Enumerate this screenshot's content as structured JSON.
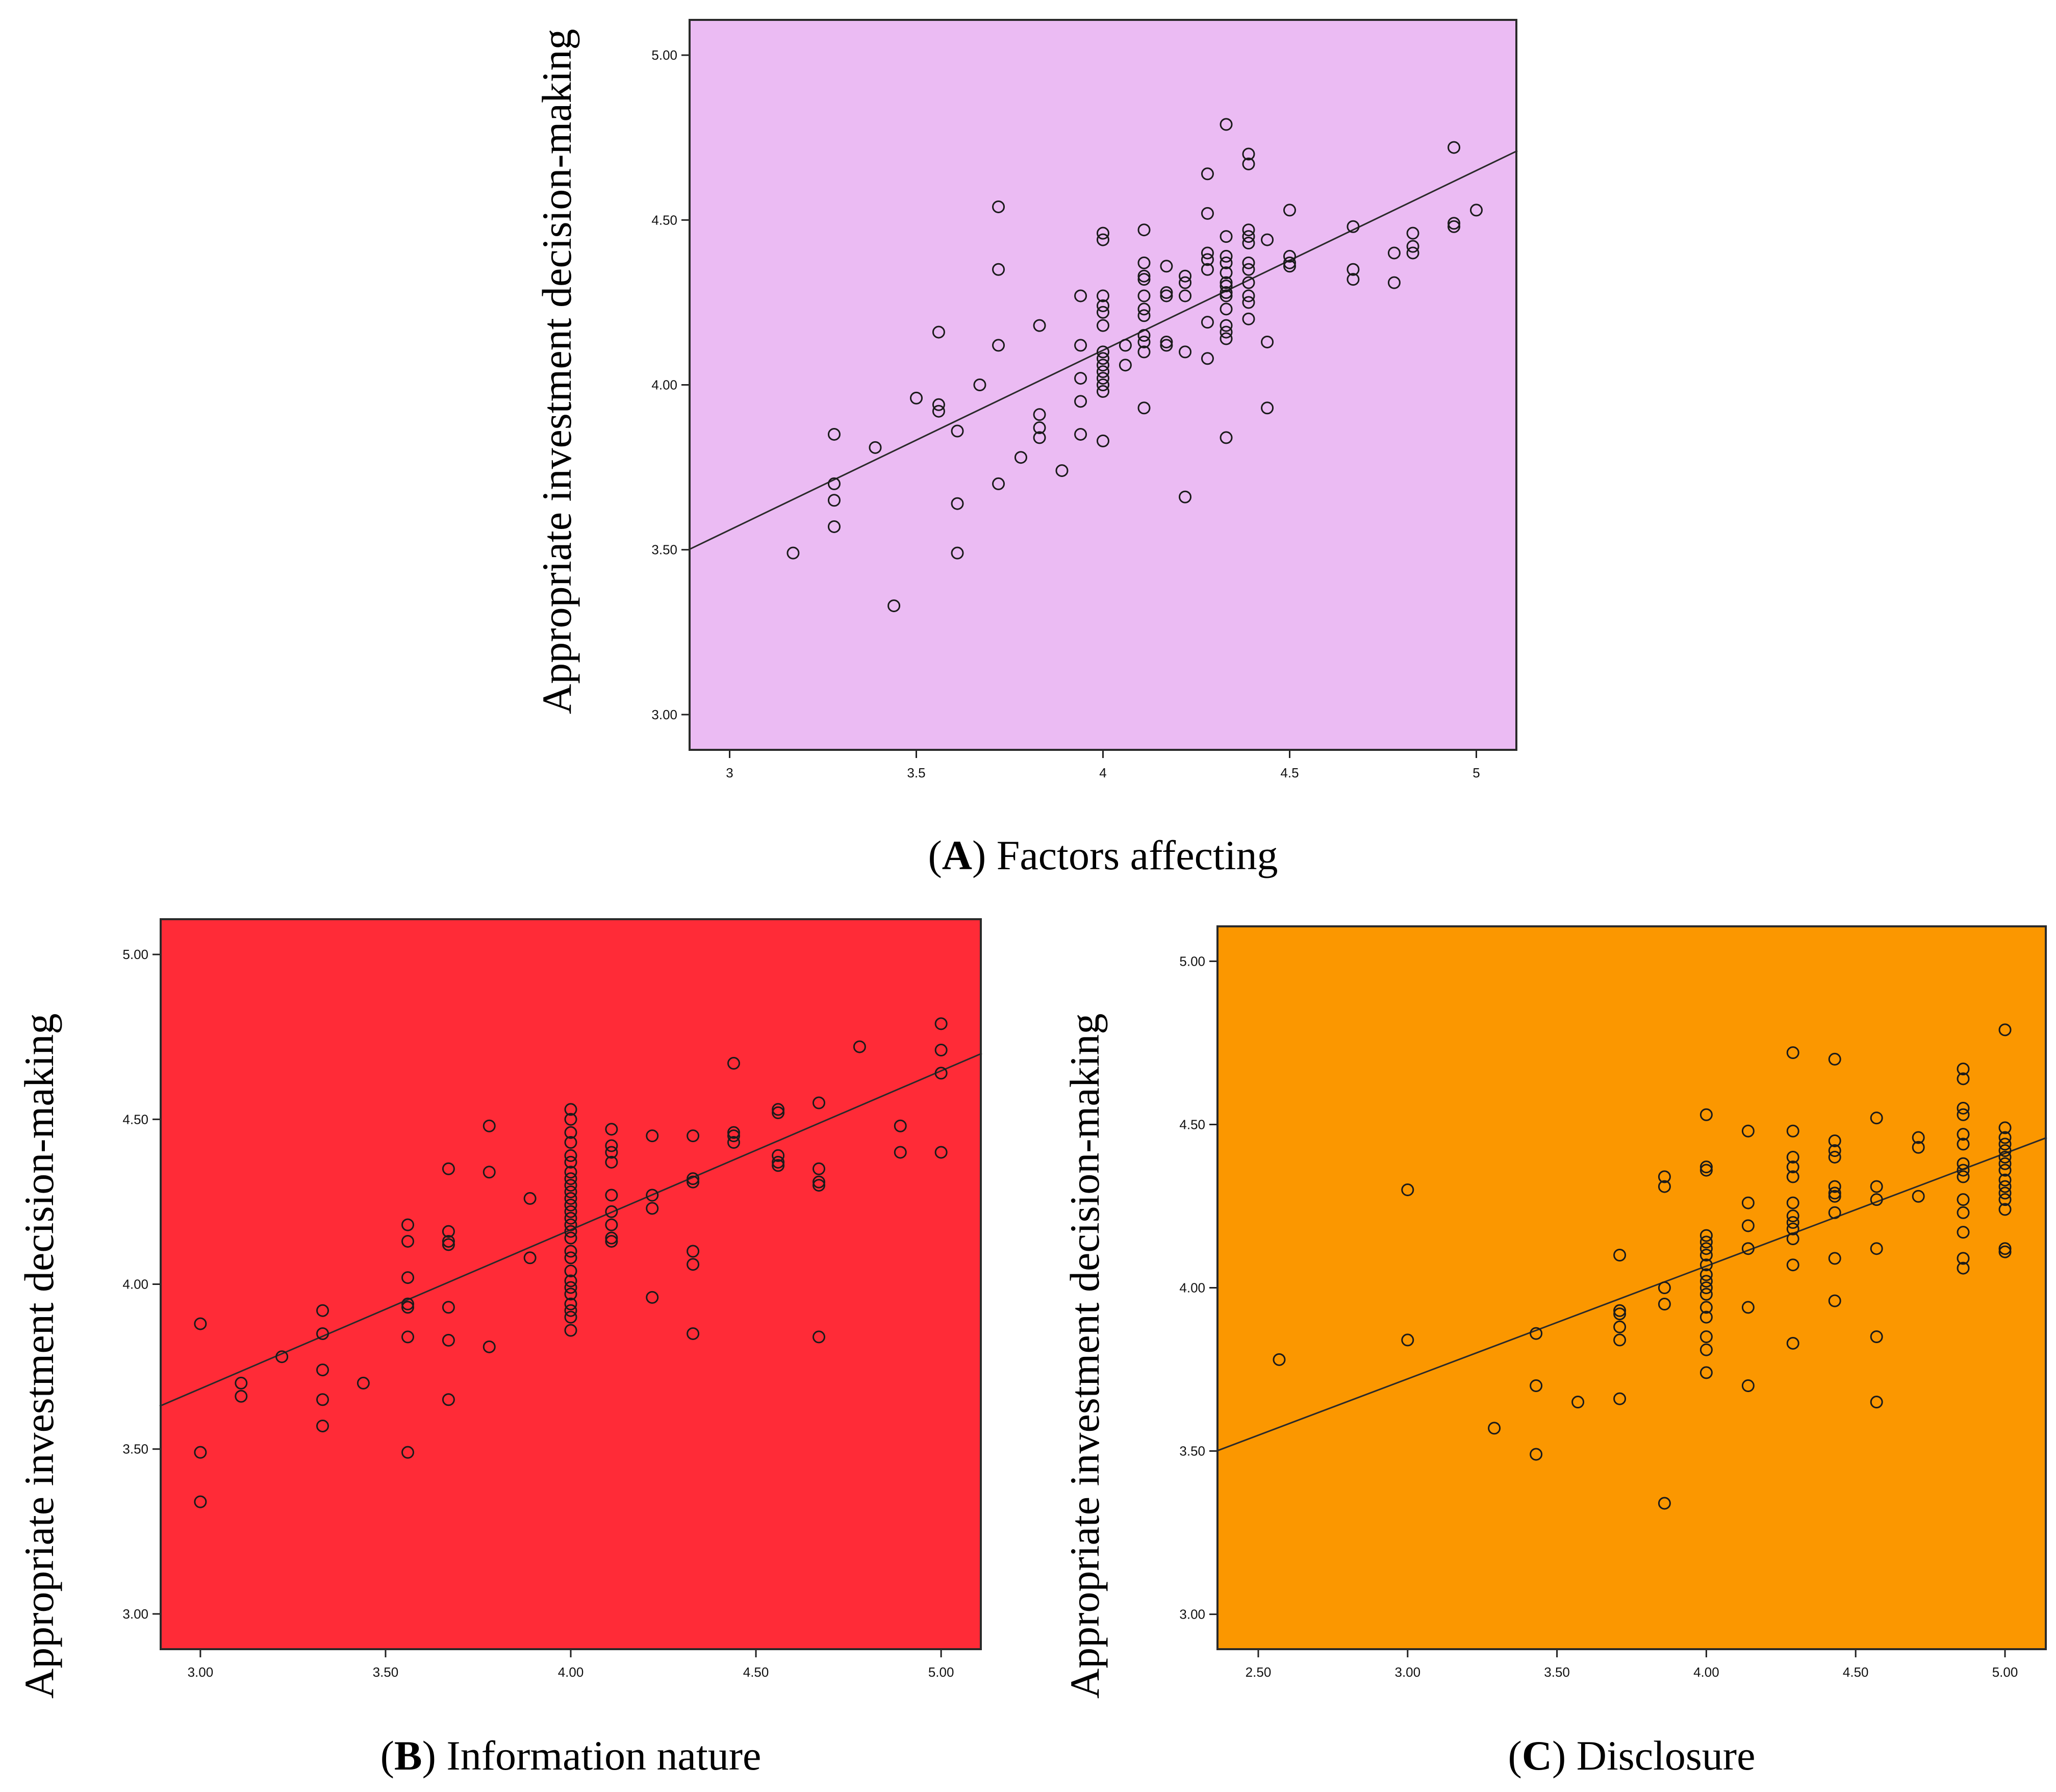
{
  "chart_data": [
    {
      "id": "A",
      "type": "scatter",
      "caption_letter": "A",
      "caption_text": ") Factors affecting",
      "caption_open": "(",
      "ylabel": "Appropriate investment decision-making",
      "xlabel": "",
      "background": "#ebbbf3",
      "xlim": [
        2.89,
        5.11
      ],
      "ylim": [
        2.89,
        5.11
      ],
      "x_ticks": [
        3,
        3.5,
        4,
        4.5,
        5
      ],
      "x_tick_labels": [
        "3",
        "3.5",
        "4",
        "4.5",
        "5"
      ],
      "y_ticks": [
        3.0,
        3.5,
        4.0,
        4.5,
        5.0
      ],
      "y_tick_labels": [
        "3.00",
        "3.50",
        "4.00",
        "4.50",
        "5.00"
      ],
      "fit_line": {
        "x1": 2.89,
        "y1": 3.5,
        "x2": 5.11,
        "y2": 4.71
      },
      "points": [
        [
          3.17,
          3.49
        ],
        [
          3.28,
          3.85
        ],
        [
          3.28,
          3.7
        ],
        [
          3.28,
          3.65
        ],
        [
          3.28,
          3.57
        ],
        [
          3.39,
          3.81
        ],
        [
          3.44,
          3.33
        ],
        [
          3.5,
          3.96
        ],
        [
          3.56,
          4.16
        ],
        [
          3.56,
          3.94
        ],
        [
          3.56,
          3.92
        ],
        [
          3.61,
          3.86
        ],
        [
          3.61,
          3.64
        ],
        [
          3.61,
          3.49
        ],
        [
          3.67,
          4.0
        ],
        [
          3.72,
          4.54
        ],
        [
          3.72,
          4.35
        ],
        [
          3.72,
          4.12
        ],
        [
          3.72,
          3.7
        ],
        [
          3.78,
          3.78
        ],
        [
          3.83,
          4.18
        ],
        [
          3.83,
          3.91
        ],
        [
          3.83,
          3.87
        ],
        [
          3.83,
          3.84
        ],
        [
          3.89,
          3.74
        ],
        [
          3.94,
          4.27
        ],
        [
          3.94,
          4.12
        ],
        [
          3.94,
          4.02
        ],
        [
          3.94,
          3.95
        ],
        [
          3.94,
          3.85
        ],
        [
          4.0,
          4.46
        ],
        [
          4.0,
          4.44
        ],
        [
          4.0,
          4.27
        ],
        [
          4.0,
          4.24
        ],
        [
          4.0,
          4.22
        ],
        [
          4.0,
          4.18
        ],
        [
          4.0,
          4.1
        ],
        [
          4.0,
          4.08
        ],
        [
          4.0,
          4.06
        ],
        [
          4.0,
          4.04
        ],
        [
          4.0,
          4.02
        ],
        [
          4.0,
          4.0
        ],
        [
          4.0,
          3.98
        ],
        [
          4.0,
          3.83
        ],
        [
          4.06,
          4.12
        ],
        [
          4.06,
          4.06
        ],
        [
          4.11,
          4.47
        ],
        [
          4.11,
          4.37
        ],
        [
          4.11,
          4.33
        ],
        [
          4.11,
          4.32
        ],
        [
          4.11,
          4.27
        ],
        [
          4.11,
          4.23
        ],
        [
          4.11,
          4.21
        ],
        [
          4.11,
          4.15
        ],
        [
          4.11,
          4.13
        ],
        [
          4.11,
          4.1
        ],
        [
          4.11,
          3.93
        ],
        [
          4.17,
          4.36
        ],
        [
          4.17,
          4.28
        ],
        [
          4.17,
          4.27
        ],
        [
          4.17,
          4.13
        ],
        [
          4.17,
          4.12
        ],
        [
          4.22,
          4.33
        ],
        [
          4.22,
          4.31
        ],
        [
          4.22,
          4.27
        ],
        [
          4.22,
          4.1
        ],
        [
          4.22,
          3.66
        ],
        [
          4.28,
          4.64
        ],
        [
          4.28,
          4.52
        ],
        [
          4.28,
          4.4
        ],
        [
          4.28,
          4.38
        ],
        [
          4.28,
          4.35
        ],
        [
          4.28,
          4.19
        ],
        [
          4.28,
          4.08
        ],
        [
          4.33,
          4.79
        ],
        [
          4.33,
          4.45
        ],
        [
          4.33,
          4.39
        ],
        [
          4.33,
          4.37
        ],
        [
          4.33,
          4.34
        ],
        [
          4.33,
          4.31
        ],
        [
          4.33,
          4.3
        ],
        [
          4.33,
          4.28
        ],
        [
          4.33,
          4.27
        ],
        [
          4.33,
          4.23
        ],
        [
          4.33,
          4.18
        ],
        [
          4.33,
          4.16
        ],
        [
          4.33,
          4.14
        ],
        [
          4.33,
          3.84
        ],
        [
          4.39,
          4.7
        ],
        [
          4.39,
          4.67
        ],
        [
          4.39,
          4.47
        ],
        [
          4.39,
          4.45
        ],
        [
          4.39,
          4.43
        ],
        [
          4.39,
          4.37
        ],
        [
          4.39,
          4.35
        ],
        [
          4.39,
          4.31
        ],
        [
          4.39,
          4.27
        ],
        [
          4.39,
          4.25
        ],
        [
          4.39,
          4.2
        ],
        [
          4.44,
          4.44
        ],
        [
          4.44,
          4.13
        ],
        [
          4.44,
          3.93
        ],
        [
          4.5,
          4.53
        ],
        [
          4.5,
          4.39
        ],
        [
          4.5,
          4.37
        ],
        [
          4.5,
          4.36
        ],
        [
          4.67,
          4.48
        ],
        [
          4.67,
          4.35
        ],
        [
          4.67,
          4.32
        ],
        [
          4.78,
          4.4
        ],
        [
          4.78,
          4.31
        ],
        [
          4.83,
          4.46
        ],
        [
          4.83,
          4.42
        ],
        [
          4.83,
          4.4
        ],
        [
          4.94,
          4.72
        ],
        [
          4.94,
          4.49
        ],
        [
          4.94,
          4.48
        ],
        [
          5.0,
          4.53
        ]
      ]
    },
    {
      "id": "B",
      "type": "scatter",
      "caption_letter": "B",
      "caption_text": ") Information nature",
      "caption_open": "(",
      "ylabel": "Appropriate investment decision-making",
      "xlabel": "",
      "background": "#ff2b37",
      "xlim": [
        2.89,
        5.11
      ],
      "ylim": [
        2.89,
        5.11
      ],
      "x_ticks": [
        3.0,
        3.5,
        4.0,
        4.5,
        5.0
      ],
      "x_tick_labels": [
        "3.00",
        "3.50",
        "4.00",
        "4.50",
        "5.00"
      ],
      "y_ticks": [
        3.0,
        3.5,
        4.0,
        4.5,
        5.0
      ],
      "y_tick_labels": [
        "3.00",
        "3.50",
        "4.00",
        "4.50",
        "5.00"
      ],
      "fit_line": {
        "x1": 2.89,
        "y1": 3.63,
        "x2": 5.11,
        "y2": 4.7
      },
      "points": [
        [
          3.0,
          3.88
        ],
        [
          3.0,
          3.49
        ],
        [
          3.0,
          3.34
        ],
        [
          3.11,
          3.7
        ],
        [
          3.11,
          3.66
        ],
        [
          3.22,
          3.78
        ],
        [
          3.33,
          3.92
        ],
        [
          3.33,
          3.85
        ],
        [
          3.33,
          3.74
        ],
        [
          3.33,
          3.65
        ],
        [
          3.33,
          3.57
        ],
        [
          3.44,
          3.7
        ],
        [
          3.56,
          4.18
        ],
        [
          3.56,
          4.13
        ],
        [
          3.56,
          4.02
        ],
        [
          3.56,
          3.94
        ],
        [
          3.56,
          3.93
        ],
        [
          3.56,
          3.84
        ],
        [
          3.56,
          3.49
        ],
        [
          3.67,
          4.35
        ],
        [
          3.67,
          4.16
        ],
        [
          3.67,
          4.13
        ],
        [
          3.67,
          4.12
        ],
        [
          3.67,
          3.93
        ],
        [
          3.67,
          3.83
        ],
        [
          3.67,
          3.65
        ],
        [
          3.78,
          4.48
        ],
        [
          3.78,
          4.34
        ],
        [
          3.78,
          3.81
        ],
        [
          3.89,
          4.26
        ],
        [
          3.89,
          4.08
        ],
        [
          4.0,
          4.53
        ],
        [
          4.0,
          4.5
        ],
        [
          4.0,
          4.46
        ],
        [
          4.0,
          4.43
        ],
        [
          4.0,
          4.39
        ],
        [
          4.0,
          4.37
        ],
        [
          4.0,
          4.34
        ],
        [
          4.0,
          4.32
        ],
        [
          4.0,
          4.3
        ],
        [
          4.0,
          4.28
        ],
        [
          4.0,
          4.26
        ],
        [
          4.0,
          4.24
        ],
        [
          4.0,
          4.22
        ],
        [
          4.0,
          4.2
        ],
        [
          4.0,
          4.18
        ],
        [
          4.0,
          4.16
        ],
        [
          4.0,
          4.14
        ],
        [
          4.0,
          4.1
        ],
        [
          4.0,
          4.08
        ],
        [
          4.0,
          4.04
        ],
        [
          4.0,
          4.01
        ],
        [
          4.0,
          3.99
        ],
        [
          4.0,
          3.97
        ],
        [
          4.0,
          3.94
        ],
        [
          4.0,
          3.92
        ],
        [
          4.0,
          3.9
        ],
        [
          4.0,
          3.86
        ],
        [
          4.11,
          4.47
        ],
        [
          4.11,
          4.42
        ],
        [
          4.11,
          4.4
        ],
        [
          4.11,
          4.37
        ],
        [
          4.11,
          4.27
        ],
        [
          4.11,
          4.22
        ],
        [
          4.11,
          4.18
        ],
        [
          4.11,
          4.14
        ],
        [
          4.11,
          4.13
        ],
        [
          4.22,
          4.45
        ],
        [
          4.22,
          4.27
        ],
        [
          4.22,
          4.23
        ],
        [
          4.22,
          3.96
        ],
        [
          4.33,
          4.45
        ],
        [
          4.33,
          4.32
        ],
        [
          4.33,
          4.31
        ],
        [
          4.33,
          4.1
        ],
        [
          4.33,
          4.06
        ],
        [
          4.33,
          3.85
        ],
        [
          4.44,
          4.67
        ],
        [
          4.44,
          4.46
        ],
        [
          4.44,
          4.45
        ],
        [
          4.44,
          4.43
        ],
        [
          4.56,
          4.53
        ],
        [
          4.56,
          4.52
        ],
        [
          4.56,
          4.39
        ],
        [
          4.56,
          4.37
        ],
        [
          4.56,
          4.36
        ],
        [
          4.67,
          4.55
        ],
        [
          4.67,
          4.35
        ],
        [
          4.67,
          4.31
        ],
        [
          4.67,
          4.3
        ],
        [
          4.67,
          3.84
        ],
        [
          4.78,
          4.72
        ],
        [
          4.89,
          4.48
        ],
        [
          4.89,
          4.4
        ],
        [
          5.0,
          4.79
        ],
        [
          5.0,
          4.71
        ],
        [
          5.0,
          4.64
        ],
        [
          5.0,
          4.4
        ]
      ]
    },
    {
      "id": "C",
      "type": "scatter",
      "caption_letter": "C",
      "caption_text": ") Disclosure",
      "caption_open": "(",
      "ylabel": "Appropriate investment decision-making",
      "xlabel": "",
      "background": "#fb9700",
      "xlim": [
        2.36,
        5.14
      ],
      "ylim": [
        2.89,
        5.11
      ],
      "x_ticks": [
        2.5,
        3.0,
        3.5,
        4.0,
        4.5,
        5.0
      ],
      "x_tick_labels": [
        "2.50",
        "3.00",
        "3.50",
        "4.00",
        "4.50",
        "5.00"
      ],
      "y_ticks": [
        3.0,
        3.5,
        4.0,
        4.5,
        5.0
      ],
      "y_tick_labels": [
        "3.00",
        "3.50",
        "4.00",
        "4.50",
        "5.00"
      ],
      "fit_line": {
        "x1": 2.36,
        "y1": 3.5,
        "x2": 5.14,
        "y2": 4.46
      },
      "points": [
        [
          2.57,
          3.78
        ],
        [
          3.0,
          4.3
        ],
        [
          3.0,
          3.84
        ],
        [
          3.29,
          3.57
        ],
        [
          3.43,
          3.86
        ],
        [
          3.43,
          3.7
        ],
        [
          3.43,
          3.49
        ],
        [
          3.57,
          3.65
        ],
        [
          3.71,
          4.1
        ],
        [
          3.71,
          3.93
        ],
        [
          3.71,
          3.92
        ],
        [
          3.71,
          3.88
        ],
        [
          3.71,
          3.84
        ],
        [
          3.71,
          3.66
        ],
        [
          3.86,
          4.34
        ],
        [
          3.86,
          4.31
        ],
        [
          3.86,
          4.0
        ],
        [
          3.86,
          3.95
        ],
        [
          3.86,
          3.34
        ],
        [
          4.0,
          4.53
        ],
        [
          4.0,
          4.37
        ],
        [
          4.0,
          4.36
        ],
        [
          4.0,
          4.16
        ],
        [
          4.0,
          4.14
        ],
        [
          4.0,
          4.12
        ],
        [
          4.0,
          4.1
        ],
        [
          4.0,
          4.07
        ],
        [
          4.0,
          4.04
        ],
        [
          4.0,
          4.02
        ],
        [
          4.0,
          4.0
        ],
        [
          4.0,
          3.98
        ],
        [
          4.0,
          3.94
        ],
        [
          4.0,
          3.91
        ],
        [
          4.0,
          3.85
        ],
        [
          4.0,
          3.81
        ],
        [
          4.0,
          3.74
        ],
        [
          4.14,
          4.48
        ],
        [
          4.14,
          4.26
        ],
        [
          4.14,
          4.19
        ],
        [
          4.14,
          4.12
        ],
        [
          4.14,
          3.94
        ],
        [
          4.14,
          3.7
        ],
        [
          4.29,
          4.72
        ],
        [
          4.29,
          4.48
        ],
        [
          4.29,
          4.4
        ],
        [
          4.29,
          4.37
        ],
        [
          4.29,
          4.34
        ],
        [
          4.29,
          4.26
        ],
        [
          4.29,
          4.22
        ],
        [
          4.29,
          4.2
        ],
        [
          4.29,
          4.18
        ],
        [
          4.29,
          4.15
        ],
        [
          4.29,
          4.07
        ],
        [
          4.29,
          3.83
        ],
        [
          4.43,
          4.7
        ],
        [
          4.43,
          4.45
        ],
        [
          4.43,
          4.42
        ],
        [
          4.43,
          4.4
        ],
        [
          4.43,
          4.31
        ],
        [
          4.43,
          4.29
        ],
        [
          4.43,
          4.28
        ],
        [
          4.43,
          4.23
        ],
        [
          4.43,
          4.09
        ],
        [
          4.43,
          3.96
        ],
        [
          4.57,
          4.52
        ],
        [
          4.57,
          4.31
        ],
        [
          4.57,
          4.27
        ],
        [
          4.57,
          4.12
        ],
        [
          4.57,
          3.85
        ],
        [
          4.57,
          3.65
        ],
        [
          4.71,
          4.46
        ],
        [
          4.71,
          4.43
        ],
        [
          4.71,
          4.28
        ],
        [
          4.86,
          4.67
        ],
        [
          4.86,
          4.64
        ],
        [
          4.86,
          4.55
        ],
        [
          4.86,
          4.53
        ],
        [
          4.86,
          4.47
        ],
        [
          4.86,
          4.44
        ],
        [
          4.86,
          4.38
        ],
        [
          4.86,
          4.36
        ],
        [
          4.86,
          4.34
        ],
        [
          4.86,
          4.27
        ],
        [
          4.86,
          4.23
        ],
        [
          4.86,
          4.17
        ],
        [
          4.86,
          4.09
        ],
        [
          4.86,
          4.06
        ],
        [
          5.0,
          4.79
        ],
        [
          5.0,
          4.49
        ],
        [
          5.0,
          4.46
        ],
        [
          5.0,
          4.44
        ],
        [
          5.0,
          4.42
        ],
        [
          5.0,
          4.4
        ],
        [
          5.0,
          4.38
        ],
        [
          5.0,
          4.36
        ],
        [
          5.0,
          4.33
        ],
        [
          5.0,
          4.31
        ],
        [
          5.0,
          4.29
        ],
        [
          5.0,
          4.27
        ],
        [
          5.0,
          4.24
        ],
        [
          5.0,
          4.12
        ],
        [
          5.0,
          4.11
        ]
      ]
    }
  ]
}
